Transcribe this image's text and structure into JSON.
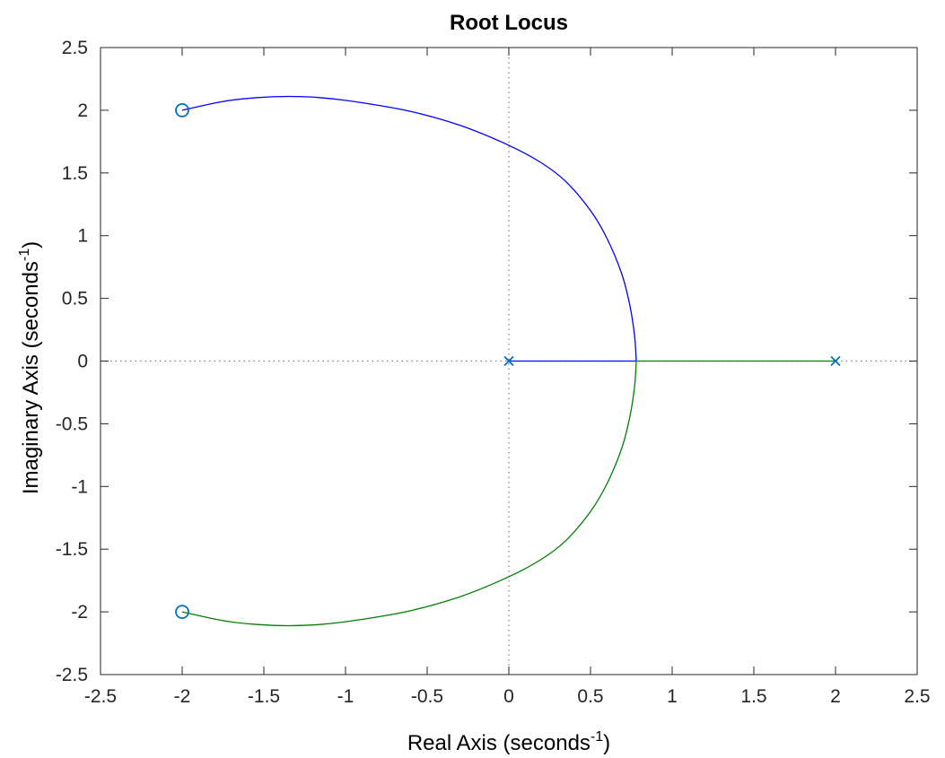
{
  "chart_data": {
    "type": "line",
    "title": "Root Locus",
    "xlabel": {
      "text": "Real Axis (seconds",
      "sup": "-1",
      "close": ")"
    },
    "ylabel": {
      "text": "Imaginary Axis (seconds",
      "sup": "-1",
      "close": ")"
    },
    "xlim": [
      -2.5,
      2.5
    ],
    "ylim": [
      -2.5,
      2.5
    ],
    "xticks": [
      "-2.5",
      "-2",
      "-1.5",
      "-1",
      "-0.5",
      "0",
      "0.5",
      "1",
      "1.5",
      "2",
      "2.5"
    ],
    "yticks": [
      "2.5",
      "2",
      "1.5",
      "1",
      "0.5",
      "0",
      "-0.5",
      "-1",
      "-1.5",
      "-2",
      "-2.5"
    ],
    "grid": false,
    "series": [
      {
        "color": "#0000ff",
        "x": [
          0,
          0.78,
          0.77,
          0.74,
          0.69,
          0.6,
          0.5,
          0.35,
          0.2,
          0.0,
          -0.3,
          -0.6,
          -0.9,
          -1.15,
          -1.35,
          -1.55,
          -1.75,
          -2.0
        ],
        "y": [
          0,
          0,
          0.2,
          0.45,
          0.7,
          0.98,
          1.2,
          1.43,
          1.58,
          1.72,
          1.88,
          1.99,
          2.06,
          2.1,
          2.11,
          2.1,
          2.07,
          2.0
        ]
      },
      {
        "color": "#008000",
        "x": [
          2,
          0.78,
          0.77,
          0.74,
          0.69,
          0.6,
          0.5,
          0.35,
          0.2,
          0.0,
          -0.3,
          -0.6,
          -0.9,
          -1.15,
          -1.35,
          -1.55,
          -1.75,
          -2.0
        ],
        "y": [
          0,
          0,
          -0.2,
          -0.45,
          -0.7,
          -0.98,
          -1.2,
          -1.43,
          -1.58,
          -1.72,
          -1.88,
          -1.99,
          -2.06,
          -2.1,
          -2.11,
          -2.1,
          -2.07,
          -2.0
        ]
      }
    ],
    "poles": [
      [
        0,
        0
      ],
      [
        2,
        0
      ]
    ],
    "zeros": [
      [
        -2,
        2
      ],
      [
        -2,
        -2
      ]
    ],
    "marker_color": "#0072bd",
    "reference_lines": {
      "x": 0,
      "y": 0,
      "style": "dotted",
      "color": "#808080"
    }
  }
}
